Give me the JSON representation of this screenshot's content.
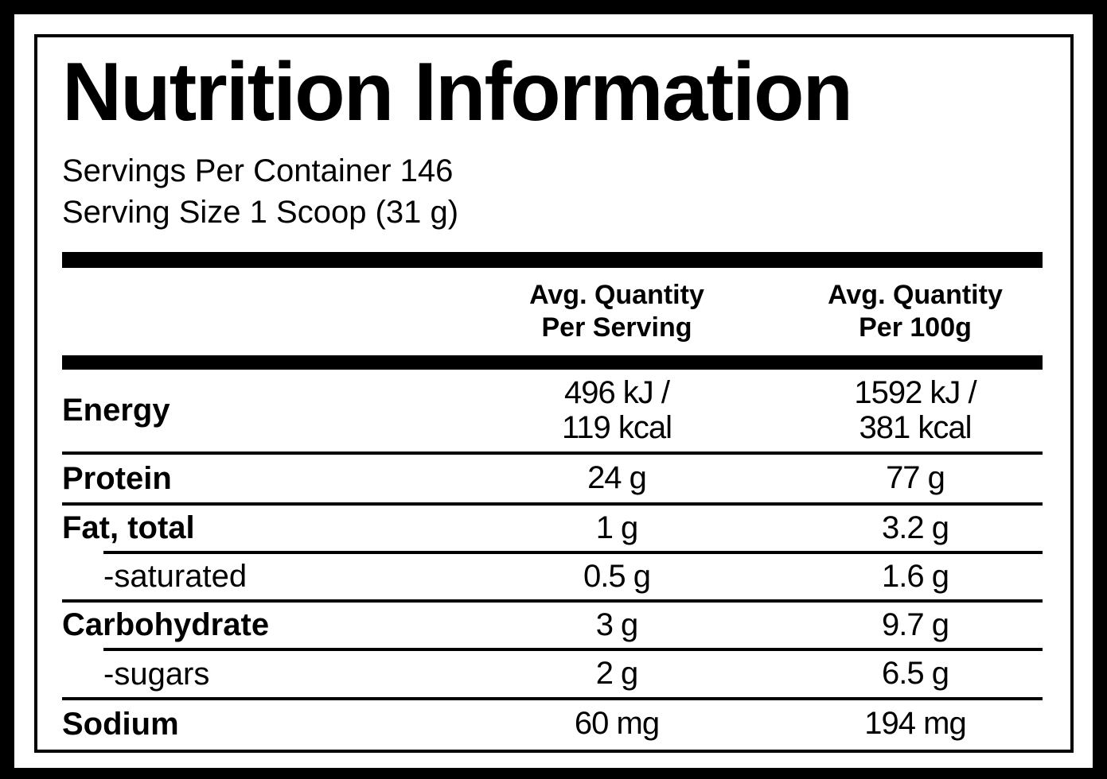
{
  "label": {
    "title": "Nutrition Information",
    "servings_per_container": "Servings Per Container 146",
    "serving_size": "Serving Size 1 Scoop (31 g)"
  },
  "table": {
    "header": {
      "per_serving": "Avg. Quantity\nPer Serving",
      "per_100g": "Avg. Quantity\nPer 100g"
    },
    "rows": [
      {
        "label": "Energy",
        "per_serving": "496 kJ /\n119 kcal",
        "per_100g": "1592 kJ /\n381 kcal"
      },
      {
        "label": "Protein",
        "per_serving": "24 g",
        "per_100g": "77 g"
      },
      {
        "label": "Fat, total",
        "per_serving": "1 g",
        "per_100g": "3.2 g"
      },
      {
        "label": "-saturated",
        "per_serving": "0.5 g",
        "per_100g": "1.6 g",
        "indent": true
      },
      {
        "label": "Carbohydrate",
        "per_serving": "3 g",
        "per_100g": "9.7 g"
      },
      {
        "label": "-sugars",
        "per_serving": "2 g",
        "per_100g": "6.5 g",
        "indent": true
      },
      {
        "label": "Sodium",
        "per_serving": "60 mg",
        "per_100g": "194 mg"
      }
    ]
  },
  "colors": {
    "text": "#000000",
    "background": "#ffffff",
    "frame": "#000000"
  }
}
